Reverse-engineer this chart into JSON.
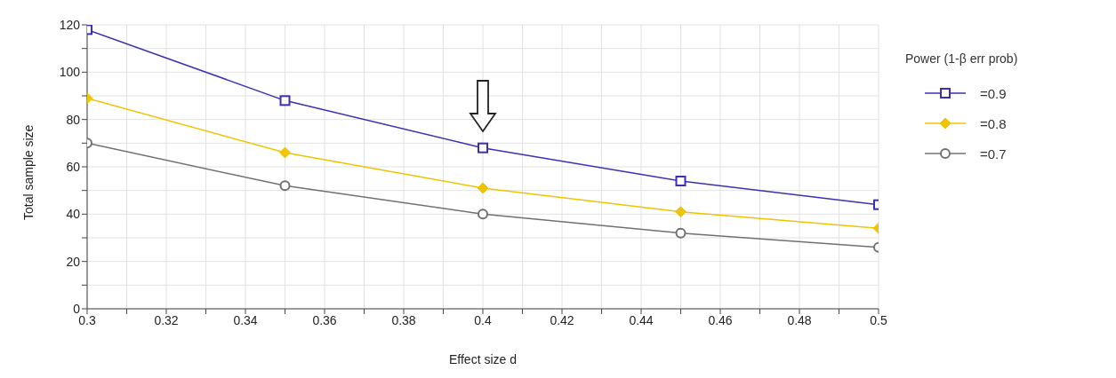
{
  "chart_data": {
    "type": "line",
    "xlabel": "Effect size d",
    "ylabel": "Total sample size",
    "legend_title": "Power (1-β err prob)",
    "x": [
      0.3,
      0.35,
      0.4,
      0.45,
      0.5
    ],
    "series": [
      {
        "name": "=0.9",
        "color": "#3b2fb5",
        "marker": "square",
        "values": [
          118,
          88,
          68,
          54,
          44
        ]
      },
      {
        "name": "=0.8",
        "color": "#f0c400",
        "marker": "diamond",
        "values": [
          89,
          66,
          51,
          41,
          34
        ]
      },
      {
        "name": "=0.7",
        "color": "#707070",
        "marker": "circle",
        "values": [
          70,
          52,
          40,
          32,
          26
        ]
      }
    ],
    "xlim": [
      0.3,
      0.5
    ],
    "ylim": [
      0,
      120
    ],
    "xticks": [
      0.3,
      {
        "value": 0.31,
        "label": null
      },
      0.32,
      {
        "value": 0.33,
        "label": null
      },
      0.34,
      {
        "value": 0.35,
        "label": null
      },
      0.36,
      {
        "value": 0.37,
        "label": null
      },
      0.38,
      {
        "value": 0.39,
        "label": null
      },
      0.4,
      {
        "value": 0.41,
        "label": null
      },
      0.42,
      {
        "value": 0.43,
        "label": null
      },
      0.44,
      {
        "value": 0.45,
        "label": null
      },
      0.46,
      {
        "value": 0.47,
        "label": null
      },
      0.48,
      {
        "value": 0.49,
        "label": null
      },
      0.5
    ],
    "yticks": [
      0,
      {
        "value": 10,
        "label": null
      },
      20,
      {
        "value": 30,
        "label": null
      },
      40,
      {
        "value": 50,
        "label": null
      },
      60,
      {
        "value": 70,
        "label": null
      },
      80,
      {
        "value": 90,
        "label": null
      },
      100,
      {
        "value": 110,
        "label": null
      },
      120
    ],
    "grid": true,
    "legend": "right",
    "line_style": "solid"
  }
}
